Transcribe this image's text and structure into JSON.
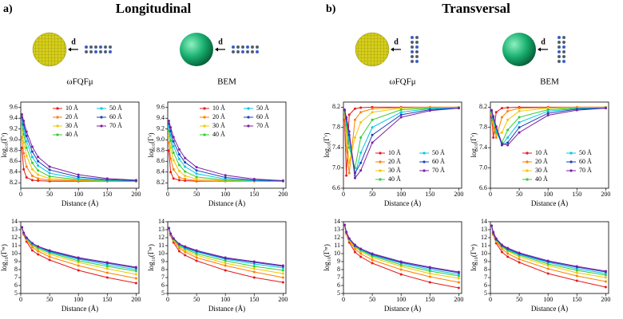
{
  "panels": [
    {
      "label": "a)",
      "title": "Longitudinal",
      "models": [
        "ωFQFμ",
        "BEM"
      ],
      "distance_label": "d"
    },
    {
      "label": "b)",
      "title": "Transversal",
      "models": [
        "ωFQFμ",
        "BEM"
      ],
      "distance_label": "d"
    }
  ],
  "chart_data": [
    {
      "type": "line",
      "xlabel": "Distance (Å)",
      "ylabel": "log₁₀(Γʳ)",
      "xlim": [
        0,
        205
      ],
      "xticks": [
        0,
        50,
        100,
        150,
        200
      ],
      "ylim": [
        8.1,
        9.7
      ],
      "yticks": [
        8.2,
        8.4,
        8.6,
        8.8,
        {
          "value": 9,
          "label": "9.0"
        },
        9.2,
        9.4,
        9.6
      ],
      "legend": "upper right",
      "x": [
        2,
        5,
        10,
        20,
        30,
        50,
        100,
        150,
        200
      ],
      "series": [
        {
          "name": "10 Å",
          "color": "#e41a1c",
          "values": [
            8.85,
            8.45,
            8.3,
            8.25,
            8.24,
            8.23,
            8.23,
            8.23,
            8.23
          ]
        },
        {
          "name": "20 Å",
          "color": "#ff7f00",
          "values": [
            9.05,
            8.75,
            8.5,
            8.33,
            8.28,
            8.25,
            8.24,
            8.23,
            8.23
          ]
        },
        {
          "name": "30 Å",
          "color": "#f0c800",
          "values": [
            9.2,
            8.95,
            8.7,
            8.45,
            8.35,
            8.28,
            8.25,
            8.24,
            8.23
          ]
        },
        {
          "name": "40 Å",
          "color": "#33cc33",
          "values": [
            9.3,
            9.1,
            8.85,
            8.57,
            8.43,
            8.32,
            8.26,
            8.24,
            8.23
          ]
        },
        {
          "name": "50 Å",
          "color": "#00c8e6",
          "values": [
            9.37,
            9.2,
            8.97,
            8.68,
            8.52,
            8.38,
            8.28,
            8.25,
            8.24
          ]
        },
        {
          "name": "60 Å",
          "color": "#1f3fbf",
          "values": [
            9.42,
            9.28,
            9.07,
            8.78,
            8.6,
            8.44,
            8.31,
            8.26,
            8.24
          ]
        },
        {
          "name": "70 Å",
          "color": "#7b1fa2",
          "values": [
            9.47,
            9.35,
            9.15,
            8.87,
            8.68,
            8.5,
            8.35,
            8.28,
            8.25
          ]
        }
      ]
    },
    {
      "type": "line",
      "xlabel": "Distance (Å)",
      "ylabel": "log₁₀(Γʳ)",
      "xlim": [
        0,
        205
      ],
      "xticks": [
        0,
        50,
        100,
        150,
        200
      ],
      "ylim": [
        8.1,
        9.7
      ],
      "yticks": [
        8.2,
        8.4,
        8.6,
        8.8,
        {
          "value": 9,
          "label": "9.0"
        },
        9.2,
        9.4,
        9.6
      ],
      "legend": "upper right",
      "x": [
        2,
        5,
        10,
        20,
        30,
        50,
        100,
        150,
        200
      ],
      "series": [
        {
          "name": "10 Å",
          "color": "#e41a1c",
          "values": [
            8.8,
            8.4,
            8.28,
            8.25,
            8.24,
            8.23,
            8.23,
            8.23,
            8.23
          ]
        },
        {
          "name": "20 Å",
          "color": "#ff7f00",
          "values": [
            8.95,
            8.65,
            8.45,
            8.3,
            8.27,
            8.24,
            8.23,
            8.23,
            8.23
          ]
        },
        {
          "name": "30 Å",
          "color": "#f0c800",
          "values": [
            9.08,
            8.85,
            8.62,
            8.42,
            8.33,
            8.27,
            8.24,
            8.23,
            8.23
          ]
        },
        {
          "name": "40 Å",
          "color": "#33cc33",
          "values": [
            9.17,
            8.98,
            8.76,
            8.53,
            8.41,
            8.31,
            8.25,
            8.24,
            8.23
          ]
        },
        {
          "name": "50 Å",
          "color": "#00c8e6",
          "values": [
            9.24,
            9.08,
            8.88,
            8.64,
            8.5,
            8.37,
            8.27,
            8.24,
            8.23
          ]
        },
        {
          "name": "60 Å",
          "color": "#1f3fbf",
          "values": [
            9.3,
            9.16,
            8.97,
            8.73,
            8.58,
            8.43,
            8.3,
            8.25,
            8.24
          ]
        },
        {
          "name": "70 Å",
          "color": "#7b1fa2",
          "values": [
            9.35,
            9.23,
            9.05,
            8.82,
            8.66,
            8.49,
            8.34,
            8.27,
            8.24
          ]
        }
      ]
    },
    {
      "type": "line",
      "xlabel": "Distance (Å)",
      "ylabel": "log₁₀(Γʳ)",
      "xlim": [
        0,
        205
      ],
      "xticks": [
        0,
        50,
        100,
        150,
        200
      ],
      "ylim": [
        6.6,
        8.3
      ],
      "yticks": [
        6.6,
        {
          "value": 7,
          "label": "7.0"
        },
        7.4,
        7.8,
        8.2
      ],
      "legend": "lower right",
      "x": [
        2,
        5,
        10,
        20,
        30,
        50,
        100,
        150,
        200
      ],
      "series": [
        {
          "name": "10 Å",
          "color": "#e41a1c",
          "values": [
            7.95,
            6.85,
            8.05,
            8.17,
            8.19,
            8.2,
            8.2,
            8.2,
            8.2
          ]
        },
        {
          "name": "20 Å",
          "color": "#ff7f00",
          "values": [
            8.05,
            7.4,
            6.9,
            7.95,
            8.1,
            8.17,
            8.19,
            8.2,
            8.2
          ]
        },
        {
          "name": "30 Å",
          "color": "#f0c800",
          "values": [
            8.1,
            7.7,
            7.1,
            7.6,
            7.9,
            8.1,
            8.18,
            8.19,
            8.2
          ]
        },
        {
          "name": "40 Å",
          "color": "#33cc33",
          "values": [
            8.12,
            7.85,
            7.4,
            7.0,
            7.6,
            7.95,
            8.15,
            8.18,
            8.19
          ]
        },
        {
          "name": "50 Å",
          "color": "#00c8e6",
          "values": [
            8.13,
            7.92,
            7.55,
            6.85,
            7.3,
            7.8,
            8.1,
            8.17,
            8.19
          ]
        },
        {
          "name": "60 Å",
          "color": "#1f3fbf",
          "values": [
            8.14,
            7.97,
            7.65,
            6.9,
            7.1,
            7.65,
            8.05,
            8.15,
            8.18
          ]
        },
        {
          "name": "70 Å",
          "color": "#7b1fa2",
          "values": [
            8.15,
            8.0,
            7.72,
            6.8,
            6.95,
            7.5,
            8.0,
            8.13,
            8.18
          ]
        }
      ]
    },
    {
      "type": "line",
      "xlabel": "Distance (Å)",
      "ylabel": "log₁₀(Γʳ)",
      "xlim": [
        0,
        205
      ],
      "xticks": [
        0,
        50,
        100,
        150,
        200
      ],
      "ylim": [
        6.6,
        8.3
      ],
      "yticks": [
        6.6,
        {
          "value": 7,
          "label": "7.0"
        },
        7.4,
        7.8,
        8.2
      ],
      "legend": "lower right",
      "x": [
        2,
        5,
        10,
        20,
        30,
        50,
        100,
        150,
        200
      ],
      "series": [
        {
          "name": "10 Å",
          "color": "#e41a1c",
          "values": [
            8.0,
            7.6,
            8.1,
            8.18,
            8.19,
            8.2,
            8.2,
            8.2,
            8.2
          ]
        },
        {
          "name": "20 Å",
          "color": "#ff7f00",
          "values": [
            8.05,
            7.8,
            7.6,
            8.0,
            8.12,
            8.18,
            8.19,
            8.2,
            8.2
          ]
        },
        {
          "name": "30 Å",
          "color": "#f0c800",
          "values": [
            8.08,
            7.9,
            7.65,
            7.7,
            7.95,
            8.12,
            8.18,
            8.19,
            8.2
          ]
        },
        {
          "name": "40 Å",
          "color": "#33cc33",
          "values": [
            8.1,
            7.95,
            7.7,
            7.5,
            7.75,
            8.0,
            8.15,
            8.18,
            8.19
          ]
        },
        {
          "name": "50 Å",
          "color": "#00c8e6",
          "values": [
            8.12,
            7.98,
            7.75,
            7.45,
            7.6,
            7.9,
            8.12,
            8.17,
            8.19
          ]
        },
        {
          "name": "60 Å",
          "color": "#1f3fbf",
          "values": [
            8.13,
            8.0,
            7.8,
            7.45,
            7.5,
            7.8,
            8.08,
            8.16,
            8.18
          ]
        },
        {
          "name": "70 Å",
          "color": "#7b1fa2",
          "values": [
            8.14,
            8.02,
            7.82,
            7.48,
            7.45,
            7.7,
            8.04,
            8.14,
            8.18
          ]
        }
      ]
    },
    {
      "type": "line",
      "xlabel": "Distance (Å)",
      "ylabel": "log₁₀(Γⁿʳ)",
      "xlim": [
        0,
        205
      ],
      "xticks": [
        0,
        50,
        100,
        150,
        200
      ],
      "ylim": [
        5,
        14
      ],
      "yticks": [
        5,
        6,
        7,
        8,
        9,
        10,
        11,
        12,
        13,
        14
      ],
      "x": [
        2,
        5,
        10,
        20,
        30,
        50,
        100,
        150,
        200
      ],
      "series": [
        {
          "color": "#e41a1c",
          "values": [
            13.3,
            12.4,
            11.5,
            10.4,
            9.9,
            9.2,
            7.9,
            7.0,
            6.3
          ]
        },
        {
          "color": "#ff7f00",
          "values": [
            13.3,
            12.5,
            11.7,
            10.8,
            10.3,
            9.6,
            8.5,
            7.6,
            6.9
          ]
        },
        {
          "color": "#f0c800",
          "values": [
            13.3,
            12.5,
            11.8,
            11.0,
            10.5,
            9.9,
            8.9,
            8.1,
            7.4
          ]
        },
        {
          "color": "#33cc33",
          "values": [
            13.3,
            12.6,
            11.9,
            11.1,
            10.7,
            10.1,
            9.1,
            8.4,
            7.8
          ]
        },
        {
          "color": "#00c8e6",
          "values": [
            13.3,
            12.6,
            11.9,
            11.2,
            10.8,
            10.2,
            9.3,
            8.6,
            8.0
          ]
        },
        {
          "color": "#1f3fbf",
          "values": [
            13.3,
            12.6,
            12.0,
            11.3,
            10.9,
            10.3,
            9.4,
            8.8,
            8.2
          ]
        },
        {
          "color": "#7b1fa2",
          "values": [
            13.3,
            12.6,
            12.0,
            11.3,
            10.9,
            10.4,
            9.5,
            8.9,
            8.3
          ]
        }
      ]
    },
    {
      "type": "line",
      "xlabel": "Distance (Å)",
      "ylabel": "log₁₀(Γⁿʳ)",
      "xlim": [
        0,
        205
      ],
      "xticks": [
        0,
        50,
        100,
        150,
        200
      ],
      "ylim": [
        5,
        14
      ],
      "yticks": [
        5,
        6,
        7,
        8,
        9,
        10,
        11,
        12,
        13,
        14
      ],
      "x": [
        2,
        5,
        10,
        20,
        30,
        50,
        100,
        150,
        200
      ],
      "series": [
        {
          "color": "#e41a1c",
          "values": [
            13.2,
            12.3,
            11.4,
            10.3,
            9.8,
            9.1,
            7.9,
            7.0,
            6.4
          ]
        },
        {
          "color": "#ff7f00",
          "values": [
            13.2,
            12.4,
            11.6,
            10.7,
            10.2,
            9.5,
            8.5,
            7.7,
            7.0
          ]
        },
        {
          "color": "#f0c800",
          "values": [
            13.2,
            12.4,
            11.7,
            10.9,
            10.4,
            9.8,
            8.8,
            8.1,
            7.5
          ]
        },
        {
          "color": "#33cc33",
          "values": [
            13.2,
            12.5,
            11.8,
            11.0,
            10.6,
            10.0,
            9.1,
            8.4,
            7.9
          ]
        },
        {
          "color": "#00c8e6",
          "values": [
            13.2,
            12.5,
            11.9,
            11.1,
            10.7,
            10.2,
            9.3,
            8.7,
            8.2
          ]
        },
        {
          "color": "#1f3fbf",
          "values": [
            13.2,
            12.5,
            11.9,
            11.2,
            10.8,
            10.3,
            9.4,
            8.9,
            8.4
          ]
        },
        {
          "color": "#7b1fa2",
          "values": [
            13.2,
            12.5,
            11.9,
            11.2,
            10.9,
            10.4,
            9.5,
            9.0,
            8.5
          ]
        }
      ]
    },
    {
      "type": "line",
      "xlabel": "Distance (Å)",
      "ylabel": "log₁₀(Γⁿʳ)",
      "xlim": [
        0,
        205
      ],
      "xticks": [
        0,
        50,
        100,
        150,
        200
      ],
      "ylim": [
        5,
        14
      ],
      "yticks": [
        5,
        6,
        7,
        8,
        9,
        10,
        11,
        12,
        13,
        14
      ],
      "x": [
        2,
        5,
        10,
        20,
        30,
        50,
        100,
        150,
        200
      ],
      "series": [
        {
          "color": "#e41a1c",
          "values": [
            13.6,
            12.5,
            11.4,
            10.2,
            9.6,
            8.8,
            7.4,
            6.4,
            5.7
          ]
        },
        {
          "color": "#ff7f00",
          "values": [
            13.6,
            12.6,
            11.6,
            10.6,
            10.0,
            9.2,
            8.0,
            7.1,
            6.4
          ]
        },
        {
          "color": "#f0c800",
          "values": [
            13.6,
            12.6,
            11.7,
            10.8,
            10.3,
            9.5,
            8.4,
            7.5,
            6.9
          ]
        },
        {
          "color": "#33cc33",
          "values": [
            13.6,
            12.7,
            11.8,
            10.9,
            10.4,
            9.7,
            8.6,
            7.8,
            7.2
          ]
        },
        {
          "color": "#00c8e6",
          "values": [
            13.6,
            12.7,
            11.8,
            11.0,
            10.5,
            9.8,
            8.8,
            8.0,
            7.4
          ]
        },
        {
          "color": "#1f3fbf",
          "values": [
            13.6,
            12.7,
            11.9,
            11.0,
            10.6,
            9.9,
            8.9,
            8.2,
            7.6
          ]
        },
        {
          "color": "#7b1fa2",
          "values": [
            13.6,
            12.7,
            11.9,
            11.1,
            10.6,
            10.0,
            9.0,
            8.3,
            7.7
          ]
        }
      ]
    },
    {
      "type": "line",
      "xlabel": "Distance (Å)",
      "ylabel": "log₁₀(Γⁿʳ)",
      "xlim": [
        0,
        205
      ],
      "xticks": [
        0,
        50,
        100,
        150,
        200
      ],
      "ylim": [
        5,
        14
      ],
      "yticks": [
        5,
        6,
        7,
        8,
        9,
        10,
        11,
        12,
        13,
        14
      ],
      "x": [
        2,
        5,
        10,
        20,
        30,
        50,
        100,
        150,
        200
      ],
      "series": [
        {
          "color": "#e41a1c",
          "values": [
            13.5,
            12.4,
            11.3,
            10.2,
            9.6,
            8.9,
            7.5,
            6.6,
            5.8
          ]
        },
        {
          "color": "#ff7f00",
          "values": [
            13.5,
            12.5,
            11.5,
            10.6,
            10.0,
            9.3,
            8.1,
            7.2,
            6.5
          ]
        },
        {
          "color": "#f0c800",
          "values": [
            13.5,
            12.6,
            11.6,
            10.8,
            10.3,
            9.6,
            8.5,
            7.6,
            7.0
          ]
        },
        {
          "color": "#33cc33",
          "values": [
            13.5,
            12.6,
            11.7,
            10.9,
            10.4,
            9.8,
            8.7,
            7.9,
            7.3
          ]
        },
        {
          "color": "#00c8e6",
          "values": [
            13.5,
            12.6,
            11.8,
            11.0,
            10.5,
            9.9,
            8.9,
            8.1,
            7.5
          ]
        },
        {
          "color": "#1f3fbf",
          "values": [
            13.5,
            12.6,
            11.8,
            11.0,
            10.6,
            10.0,
            9.0,
            8.3,
            7.7
          ]
        },
        {
          "color": "#7b1fa2",
          "values": [
            13.5,
            12.7,
            11.9,
            11.1,
            10.7,
            10.1,
            9.1,
            8.4,
            7.8
          ]
        }
      ]
    }
  ]
}
